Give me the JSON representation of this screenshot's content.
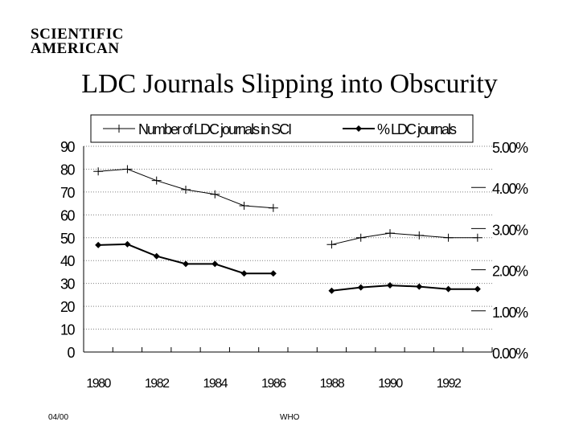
{
  "logo": {
    "line1": "SCIENTIFIC",
    "line2": "AMERICAN"
  },
  "chart_data": {
    "type": "line",
    "title": "LDC Journals Slipping into Obscurity",
    "x_ticks": [
      "1980",
      "1982",
      "1984",
      "1986",
      "1988",
      "1990",
      "1992"
    ],
    "y_left": {
      "range": [
        0,
        90
      ],
      "ticks": [
        "90",
        "80",
        "70",
        "60",
        "50",
        "40",
        "30",
        "20",
        "10",
        "0"
      ]
    },
    "y_right": {
      "range": [
        0,
        5
      ],
      "ticks": [
        "5.00%",
        "4.00%",
        "3.00%",
        "2.00%",
        "1.00%",
        "0.00%"
      ]
    },
    "grid": true,
    "legend": "top",
    "series": [
      {
        "name": "Number of LDC journals in SCI",
        "axis": "left",
        "marker": "plus",
        "x": [
          1980,
          1981,
          1982,
          1983,
          1984,
          1985,
          1986,
          1988,
          1989,
          1990,
          1991,
          1992,
          1993
        ],
        "y": [
          79,
          80,
          75,
          71,
          69,
          64,
          63,
          47,
          50,
          52,
          51,
          50,
          50
        ]
      },
      {
        "name": "% LDC journals",
        "axis": "right",
        "marker": "diamond",
        "x": [
          1980,
          1981,
          1982,
          1983,
          1984,
          1985,
          1986,
          1988,
          1989,
          1990,
          1991,
          1992,
          1993
        ],
        "y": [
          2.6,
          2.62,
          2.33,
          2.14,
          2.14,
          1.91,
          1.91,
          1.49,
          1.57,
          1.62,
          1.59,
          1.53,
          1.53
        ]
      }
    ]
  },
  "footer": {
    "left": "04/00",
    "center": "WHO"
  },
  "colors": {
    "line": "#000000",
    "grid": "#808080",
    "background": "#ffffff"
  }
}
